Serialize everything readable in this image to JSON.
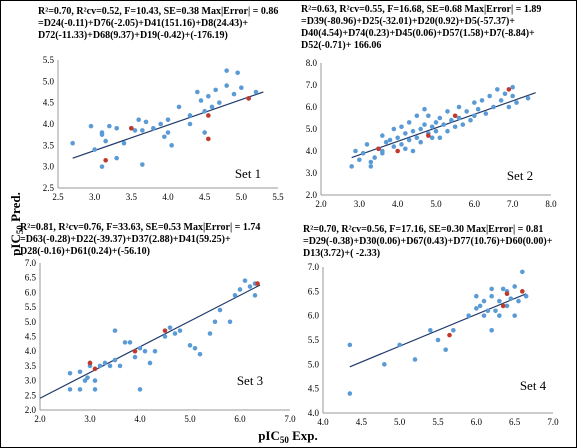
{
  "y_label_text": "pIC",
  "y_label_sub": "50",
  "y_label_rest": " Pred.",
  "x_label_text": "pIC",
  "x_label_sub": "50",
  "x_label_rest": " Exp.",
  "colors": {
    "point": "#5b9bd5",
    "highlight": "#c0392b",
    "line": "#1f3a6b"
  },
  "chart_data": [
    {
      "type": "scatter",
      "label": "Set 1",
      "equation": [
        "R²=0.70, R²cv=0.52, F=10.43, SE=0.38 Max|Error| = 0.86",
        "=D24(-0.11)+D76(-2.05)+D41(151.16)+D8(24.43)+",
        "D72(-11.33)+D68(9.37)+D19(-0.42)+(-176.19)"
      ],
      "xlim": [
        2.5,
        5.5
      ],
      "ylim": [
        2.5,
        5.5
      ],
      "xticks": [
        "2.5",
        "3.0",
        "3.5",
        "4.0",
        "4.5",
        "5.0",
        "5.5"
      ],
      "yticks": [
        "2.5",
        "3.0",
        "3.5",
        "4.0",
        "4.5",
        "5.0",
        "5.5"
      ],
      "fit": [
        [
          2.7,
          3.2
        ],
        [
          5.3,
          4.75
        ]
      ],
      "points": [
        [
          2.7,
          3.55
        ],
        [
          2.95,
          3.95
        ],
        [
          3.0,
          3.4
        ],
        [
          3.1,
          3.8
        ],
        [
          3.1,
          3.75
        ],
        [
          3.1,
          3.0
        ],
        [
          3.15,
          3.6
        ],
        [
          3.2,
          3.95
        ],
        [
          3.3,
          3.9
        ],
        [
          3.3,
          3.2
        ],
        [
          3.4,
          3.55
        ],
        [
          3.5,
          3.9
        ],
        [
          3.55,
          3.85
        ],
        [
          3.6,
          4.1
        ],
        [
          3.65,
          3.05
        ],
        [
          3.65,
          3.85
        ],
        [
          3.7,
          4.05
        ],
        [
          3.8,
          3.9
        ],
        [
          3.9,
          4.0
        ],
        [
          3.95,
          3.7
        ],
        [
          4.0,
          4.1
        ],
        [
          4.0,
          3.8
        ],
        [
          4.05,
          3.5
        ],
        [
          4.15,
          4.4
        ],
        [
          4.3,
          4.2
        ],
        [
          4.3,
          4.0
        ],
        [
          4.4,
          4.75
        ],
        [
          4.45,
          4.55
        ],
        [
          4.5,
          3.8
        ],
        [
          4.5,
          4.3
        ],
        [
          4.55,
          4.65
        ],
        [
          4.6,
          4.4
        ],
        [
          4.65,
          4.8
        ],
        [
          4.7,
          4.5
        ],
        [
          4.8,
          5.25
        ],
        [
          4.8,
          4.9
        ],
        [
          4.9,
          4.7
        ],
        [
          4.95,
          5.2
        ],
        [
          5.0,
          4.85
        ],
        [
          5.1,
          4.6
        ],
        [
          5.2,
          4.75
        ]
      ],
      "highlights": [
        [
          3.15,
          3.15
        ],
        [
          3.5,
          3.9
        ],
        [
          4.55,
          4.2
        ],
        [
          4.55,
          3.65
        ],
        [
          5.1,
          4.6
        ]
      ]
    },
    {
      "type": "scatter",
      "label": "Set 2",
      "equation": [
        "R²=0.63, R²cv=0.55, F=16.68, SE=0.68 Max|Error| = 1.89",
        "=D39(-80.96)+D25(-32.01)+D20(0.92)+D5(-57.37)+",
        "D40(4.54)+D74(0.23)+D45(0.06)+D57(1.58)+D7(-8.84)+",
        "D52(-0.71)+ 166.06"
      ],
      "xlim": [
        2.0,
        8.0
      ],
      "ylim": [
        2.0,
        8.0
      ],
      "xticks": [
        "2.0",
        "3.0",
        "4.0",
        "5.0",
        "6.0",
        "7.0",
        "8.0"
      ],
      "yticks": [
        "2.0",
        "3.0",
        "4.0",
        "5.0",
        "6.0",
        "7.0",
        "8.0"
      ],
      "fit": [
        [
          2.8,
          3.7
        ],
        [
          7.6,
          6.65
        ]
      ],
      "points": [
        [
          2.8,
          3.3
        ],
        [
          2.9,
          4.0
        ],
        [
          3.0,
          3.6
        ],
        [
          3.1,
          3.9
        ],
        [
          3.2,
          4.3
        ],
        [
          3.3,
          3.5
        ],
        [
          3.4,
          3.7
        ],
        [
          3.5,
          4.1
        ],
        [
          3.6,
          3.9
        ],
        [
          3.6,
          4.7
        ],
        [
          3.7,
          4.4
        ],
        [
          3.8,
          4.5
        ],
        [
          3.9,
          4.2
        ],
        [
          3.9,
          5.0
        ],
        [
          4.0,
          4.6
        ],
        [
          4.1,
          4.3
        ],
        [
          4.1,
          5.1
        ],
        [
          4.2,
          4.8
        ],
        [
          4.3,
          4.5
        ],
        [
          4.3,
          5.3
        ],
        [
          4.4,
          4.9
        ],
        [
          4.5,
          4.6
        ],
        [
          4.5,
          5.6
        ],
        [
          4.6,
          5.0
        ],
        [
          4.6,
          4.4
        ],
        [
          4.7,
          5.2
        ],
        [
          4.8,
          4.8
        ],
        [
          4.8,
          5.6
        ],
        [
          4.9,
          5.1
        ],
        [
          4.9,
          4.6
        ],
        [
          5.0,
          5.3
        ],
        [
          5.0,
          4.9
        ],
        [
          5.1,
          5.5
        ],
        [
          5.1,
          4.6
        ],
        [
          5.2,
          5.2
        ],
        [
          5.3,
          4.9
        ],
        [
          5.3,
          5.8
        ],
        [
          5.4,
          5.4
        ],
        [
          5.5,
          5.1
        ],
        [
          5.6,
          5.5
        ],
        [
          5.6,
          6.0
        ],
        [
          5.7,
          5.2
        ],
        [
          5.8,
          5.8
        ],
        [
          5.9,
          5.4
        ],
        [
          6.0,
          6.2
        ],
        [
          6.0,
          5.6
        ],
        [
          6.1,
          5.9
        ],
        [
          6.2,
          6.3
        ],
        [
          6.3,
          5.7
        ],
        [
          6.4,
          6.5
        ],
        [
          6.5,
          6.0
        ],
        [
          6.6,
          6.8
        ],
        [
          6.7,
          6.3
        ],
        [
          6.8,
          6.6
        ],
        [
          6.9,
          6.0
        ],
        [
          7.0,
          6.5
        ],
        [
          7.0,
          6.9
        ],
        [
          7.1,
          6.2
        ],
        [
          7.4,
          6.4
        ],
        [
          3.3,
          3.3
        ],
        [
          3.6,
          4.0
        ],
        [
          4.2,
          4.1
        ],
        [
          4.4,
          4.0
        ],
        [
          4.7,
          5.9
        ]
      ],
      "highlights": [
        [
          3.5,
          4.1
        ],
        [
          4.0,
          4.0
        ],
        [
          4.8,
          4.7
        ],
        [
          5.5,
          5.6
        ],
        [
          6.9,
          6.8
        ]
      ]
    },
    {
      "type": "scatter",
      "label": "Set 3",
      "equation": [
        "R²=0.81, R²cv=0.76, F=33.63, SE=0.53 Max|Error| = 1.74",
        "=D63(-0.28)+D22(-39.37)+D37(2.88)+D41(59.25)+",
        "D28(-0.16)+D61(0.24)+(-56.10)"
      ],
      "xlim": [
        2.0,
        7.0
      ],
      "ylim": [
        2.0,
        7.0
      ],
      "xticks": [
        "2.0",
        "3.0",
        "4.0",
        "5.0",
        "6.0",
        "7.0"
      ],
      "yticks": [
        "2.0",
        "2.5",
        "3.0",
        "3.5",
        "4.0",
        "4.5",
        "5.0",
        "5.5",
        "6.0",
        "6.5",
        "7.0"
      ],
      "fit": [
        [
          2.0,
          2.4
        ],
        [
          6.4,
          6.25
        ]
      ],
      "points": [
        [
          2.6,
          2.7
        ],
        [
          2.6,
          3.25
        ],
        [
          2.8,
          3.3
        ],
        [
          2.8,
          2.7
        ],
        [
          2.9,
          3.0
        ],
        [
          2.95,
          3.1
        ],
        [
          3.0,
          3.6
        ],
        [
          3.0,
          3.5
        ],
        [
          3.1,
          3.0
        ],
        [
          3.1,
          2.7
        ],
        [
          3.2,
          3.5
        ],
        [
          3.3,
          3.6
        ],
        [
          3.4,
          3.5
        ],
        [
          3.5,
          3.7
        ],
        [
          3.5,
          4.7
        ],
        [
          3.6,
          3.5
        ],
        [
          3.7,
          4.3
        ],
        [
          3.8,
          4.3
        ],
        [
          3.9,
          3.8
        ],
        [
          4.0,
          4.1
        ],
        [
          4.0,
          2.7
        ],
        [
          4.1,
          4.0
        ],
        [
          4.2,
          3.6
        ],
        [
          4.3,
          4.0
        ],
        [
          4.5,
          4.5
        ],
        [
          4.6,
          4.8
        ],
        [
          4.7,
          4.6
        ],
        [
          4.8,
          4.7
        ],
        [
          5.0,
          4.2
        ],
        [
          5.1,
          4.1
        ],
        [
          5.2,
          3.9
        ],
        [
          5.4,
          4.6
        ],
        [
          5.5,
          5.0
        ],
        [
          5.6,
          5.4
        ],
        [
          5.8,
          5.0
        ],
        [
          5.9,
          5.9
        ],
        [
          6.0,
          6.1
        ],
        [
          6.1,
          6.4
        ],
        [
          6.2,
          6.2
        ],
        [
          6.3,
          6.3
        ],
        [
          6.3,
          5.9
        ]
      ],
      "highlights": [
        [
          3.0,
          3.6
        ],
        [
          3.1,
          3.4
        ],
        [
          3.9,
          4.0
        ],
        [
          4.5,
          4.7
        ],
        [
          6.35,
          6.3
        ]
      ]
    },
    {
      "type": "scatter",
      "label": "Set 4",
      "equation": [
        "R²=0.70, R²cv=0.56, F=17.16, SE=0.30 Max|Error| = 0.81",
        "=D29(-0.38)+D30(0.06)+D67(0.43)+D77(10.76)+D60(0.00)+",
        "D13(3.72)+( -2.33)"
      ],
      "xlim": [
        4.0,
        7.0
      ],
      "ylim": [
        4.0,
        7.0
      ],
      "xticks": [
        "4.0",
        "4.5",
        "5.0",
        "5.5",
        "6.0",
        "6.5",
        "7.0"
      ],
      "yticks": [
        "4.0",
        "4.5",
        "5.0",
        "5.5",
        "6.0",
        "6.5",
        "7.0"
      ],
      "fit": [
        [
          4.35,
          4.95
        ],
        [
          6.65,
          6.45
        ]
      ],
      "points": [
        [
          4.35,
          5.4
        ],
        [
          4.35,
          4.4
        ],
        [
          4.8,
          5.0
        ],
        [
          5.0,
          5.4
        ],
        [
          5.2,
          5.1
        ],
        [
          5.4,
          5.7
        ],
        [
          5.5,
          5.5
        ],
        [
          5.6,
          5.3
        ],
        [
          5.7,
          5.7
        ],
        [
          5.9,
          6.0
        ],
        [
          6.0,
          6.15
        ],
        [
          6.05,
          6.2
        ],
        [
          6.1,
          6.0
        ],
        [
          6.1,
          6.3
        ],
        [
          6.15,
          6.1
        ],
        [
          6.2,
          5.7
        ],
        [
          6.2,
          6.4
        ],
        [
          6.25,
          6.1
        ],
        [
          6.3,
          6.3
        ],
        [
          6.3,
          6.0
        ],
        [
          6.35,
          6.55
        ],
        [
          6.4,
          6.2
        ],
        [
          6.4,
          6.5
        ],
        [
          6.45,
          6.35
        ],
        [
          6.5,
          6.0
        ],
        [
          6.5,
          6.6
        ],
        [
          6.55,
          6.3
        ],
        [
          6.6,
          6.9
        ],
        [
          6.65,
          6.4
        ],
        [
          6.0,
          6.4
        ],
        [
          6.2,
          6.55
        ]
      ],
      "highlights": [
        [
          5.65,
          5.6
        ],
        [
          6.35,
          6.2
        ],
        [
          6.4,
          6.45
        ],
        [
          6.6,
          6.5
        ]
      ]
    }
  ]
}
